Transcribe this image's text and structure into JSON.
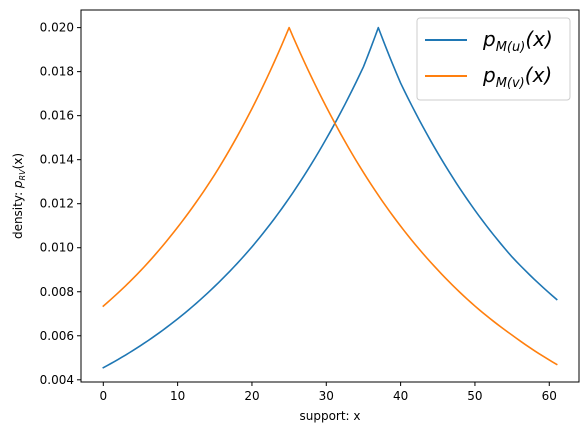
{
  "chart_data": {
    "type": "line",
    "xlabel": "support: x",
    "ylabel": {
      "prefix": "density: ",
      "main": "p",
      "sub": "RV",
      "suffix": "(x)"
    },
    "xlim": [
      -3,
      64
    ],
    "ylim": [
      0.0039,
      0.0208
    ],
    "xticks": [
      0,
      10,
      20,
      30,
      40,
      50,
      60
    ],
    "xtick_labels": [
      "0",
      "10",
      "20",
      "30",
      "40",
      "50",
      "60"
    ],
    "yticks": [
      0.004,
      0.006,
      0.008,
      0.01,
      0.012,
      0.014,
      0.016,
      0.018,
      0.02
    ],
    "ytick_labels": [
      "0.004",
      "0.006",
      "0.008",
      "0.010",
      "0.012",
      "0.014",
      "0.016",
      "0.018",
      "0.020"
    ],
    "legend_position": "top-right",
    "series": [
      {
        "name": "p_{M(u)}(x)",
        "legend": {
          "main": "p",
          "sub": "M(u)",
          "suffix": "(x)"
        },
        "color": "#1f77b4",
        "x": [
          0,
          5,
          10,
          15,
          20,
          25,
          30,
          35,
          37,
          40,
          45,
          50,
          55,
          61
        ],
        "y": [
          0.00455,
          0.00555,
          0.00677,
          0.00825,
          0.01004,
          0.01225,
          0.01495,
          0.01822,
          0.02,
          0.01748,
          0.0143,
          0.0117,
          0.00958,
          0.00765
        ]
      },
      {
        "name": "p_{M(v)}(x)",
        "legend": {
          "main": "p",
          "sub": "M(v)",
          "suffix": "(x)"
        },
        "color": "#ff7f0e",
        "x": [
          0,
          5,
          10,
          15,
          20,
          25,
          30,
          35,
          40,
          45,
          50,
          55,
          61
        ],
        "y": [
          0.00735,
          0.00895,
          0.01093,
          0.01333,
          0.01632,
          0.02,
          0.0164,
          0.01342,
          0.01098,
          0.00899,
          0.00735,
          0.00603,
          0.0047
        ]
      }
    ]
  }
}
